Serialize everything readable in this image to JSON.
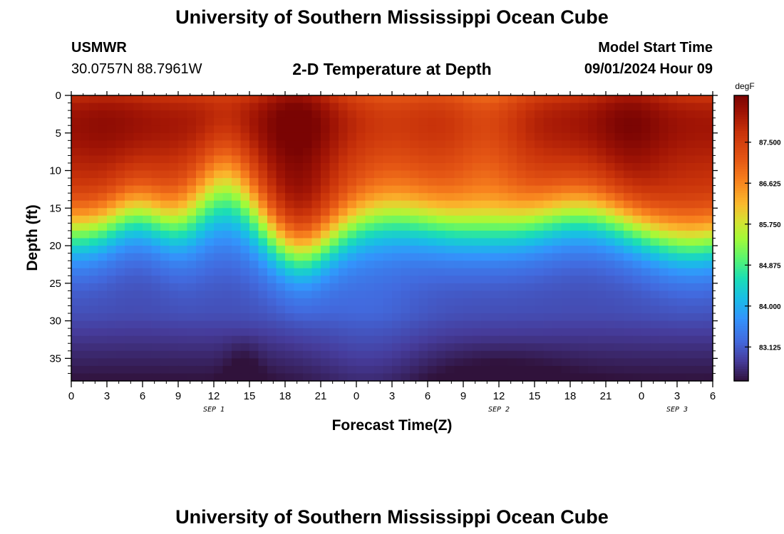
{
  "header": {
    "title": "University of Southern Mississippi Ocean Cube",
    "station": "USMWR",
    "coordinates": "30.0757N  88.7961W",
    "subtitle": "2-D Temperature at Depth",
    "model_start_label": "Model Start Time",
    "model_start_value": "09/01/2024 Hour 09"
  },
  "footer": {
    "title": "University of Southern Mississippi Ocean Cube"
  },
  "chart_data": {
    "type": "heatmap",
    "title": "2-D Temperature at Depth",
    "xlabel": "Forecast Time(Z)",
    "ylabel": "Depth (ft)",
    "x_tick_labels": [
      "0",
      "3",
      "6",
      "9",
      "12",
      "15",
      "18",
      "21",
      "0",
      "3",
      "6",
      "9",
      "12",
      "15",
      "18",
      "21",
      "0",
      "3",
      "6"
    ],
    "x_range_hours": [
      0,
      54
    ],
    "y_range_ft": [
      0,
      38
    ],
    "y_ticks": [
      0,
      5,
      10,
      15,
      20,
      25,
      30,
      35
    ],
    "date_labels": [
      {
        "label": "SEP 1",
        "hour": 12
      },
      {
        "label": "SEP 2",
        "hour": 36
      },
      {
        "label": "SEP 3",
        "hour": 51
      }
    ],
    "colorbar": {
      "unit": "degF",
      "min": 82.4,
      "max": 88.5,
      "tick_values": [
        83.125,
        84.0,
        84.875,
        85.75,
        86.625,
        87.5
      ],
      "tick_labels": [
        "83.125",
        "84.000",
        "84.875",
        "85.750",
        "86.625",
        "87.500"
      ]
    },
    "grid_resolution": {
      "columns": 72,
      "rows": 38
    }
  }
}
